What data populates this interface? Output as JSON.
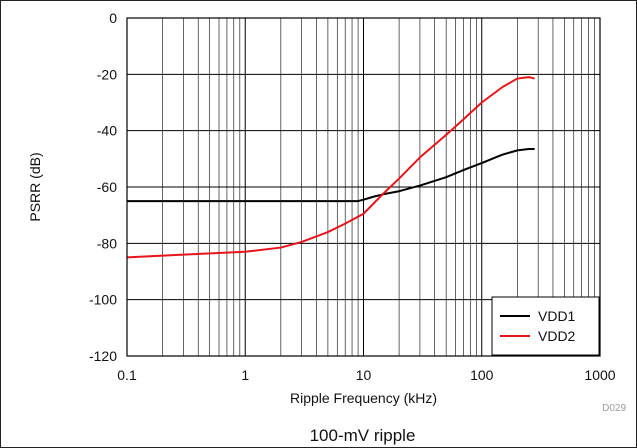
{
  "chart_data": {
    "type": "line",
    "xlabel": "Ripple Frequency (kHz)",
    "ylabel": "PSRR (dB)",
    "x_scale": "log",
    "xlim": [
      0.1,
      1000
    ],
    "ylim": [
      -120,
      0
    ],
    "x_ticks": [
      "0.1",
      "1",
      "10",
      "100",
      "1000"
    ],
    "y_ticks": [
      "0",
      "-20",
      "-40",
      "-60",
      "-80",
      "-100",
      "-120"
    ],
    "grid": true,
    "legend_position": "bottom-right",
    "series": [
      {
        "name": "VDD1",
        "color": "#000000",
        "x": [
          0.1,
          1,
          5,
          9,
          10,
          12,
          15,
          20,
          30,
          50,
          70,
          100,
          150,
          200,
          250,
          280
        ],
        "y": [
          -65,
          -65,
          -65,
          -65,
          -64.5,
          -63.5,
          -62.5,
          -61.5,
          -59.5,
          -56.5,
          -54,
          -51.5,
          -48.5,
          -47,
          -46.5,
          -46.5
        ]
      },
      {
        "name": "VDD2",
        "color": "#e8141c",
        "x": [
          0.1,
          0.3,
          1,
          2,
          3,
          5,
          7,
          10,
          15,
          20,
          30,
          50,
          70,
          100,
          150,
          200,
          250,
          280
        ],
        "y": [
          -85,
          -84,
          -83,
          -81.5,
          -79.5,
          -76,
          -73,
          -69.5,
          -62,
          -57,
          -49.5,
          -41.5,
          -36,
          -30,
          -24.5,
          -21.5,
          -21,
          -21.5
        ]
      }
    ]
  },
  "caption": "100-mV ripple",
  "figure_code": "D029"
}
